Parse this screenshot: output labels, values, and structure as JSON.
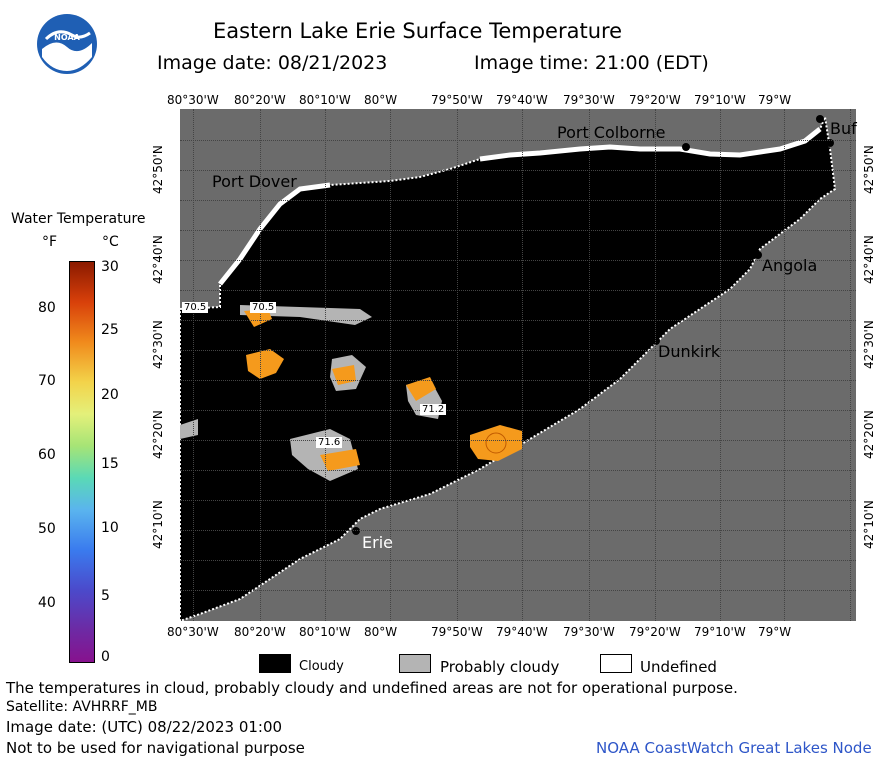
{
  "header": {
    "title": "Eastern Lake Erie Surface Temperature",
    "image_date": "Image date: 08/21/2023",
    "image_time": "Image time: 21:00 (EDT)"
  },
  "logo": {
    "text": "NOAA"
  },
  "map": {
    "lon_labels": [
      "80°30'W",
      "80°20'W",
      "80°10'W",
      "80°W",
      "79°50'W",
      "79°40'W",
      "79°30'W",
      "79°20'W",
      "79°10'W",
      "79°W"
    ],
    "lat_labels": [
      "42°50'N",
      "42°40'N",
      "42°30'N",
      "42°20'N",
      "42°10'N"
    ],
    "places": {
      "port_colborne": "Port Colborne",
      "port_dover": "Port Dover",
      "angola": "Angola",
      "dunkirk": "Dunkirk",
      "erie": "Erie",
      "buffalo": "Buf"
    },
    "temp_labels": [
      "70.5",
      "70.5",
      "71.2",
      "71.6"
    ],
    "colors": {
      "land": "#6b6b6b",
      "lake_cloud": "#000000",
      "probably_cloudy": "#b4b4b4",
      "undefined": "#ffffff",
      "warm_water": "#f59a1c"
    }
  },
  "colorbar": {
    "title": "Water Temperature",
    "unit_f": "°F",
    "unit_c": "°C",
    "f_ticks": [
      "80",
      "70",
      "60",
      "50",
      "40"
    ],
    "c_ticks": [
      "30",
      "25",
      "20",
      "15",
      "10",
      "5",
      "0"
    ]
  },
  "legend": {
    "cloudy": "Cloudy",
    "probably_cloudy": "Probably cloudy",
    "undefined": "Undefined"
  },
  "footer": {
    "note": "The temperatures in cloud, probably cloudy and undefined areas are not for operational purpose.",
    "satellite": "Satellite: AVHRRF_MB",
    "utc_date": "Image date: (UTC) 08/22/2023  01:00",
    "nav": "Not to be used for navigational purpose",
    "credit": "NOAA CoastWatch Great Lakes Node"
  }
}
